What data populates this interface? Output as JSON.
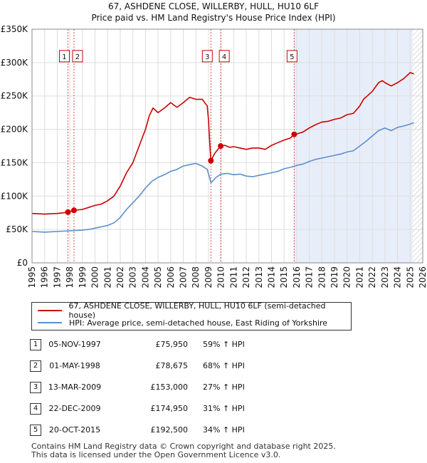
{
  "chart_data": {
    "type": "line",
    "title": "67, ASHDENE CLOSE, WILLERBY, HULL, HU10 6LF",
    "subtitle": "Price paid vs. HM Land Registry's House Price Index (HPI)",
    "xlim": [
      1995,
      2026
    ],
    "ylim": [
      0,
      350000
    ],
    "x_ticks": [
      "1995",
      "1996",
      "1997",
      "1998",
      "1999",
      "2000",
      "2001",
      "2002",
      "2003",
      "2004",
      "2005",
      "2006",
      "2007",
      "2008",
      "2009",
      "2010",
      "2011",
      "2012",
      "2013",
      "2014",
      "2015",
      "2016",
      "2017",
      "2018",
      "2019",
      "2020",
      "2021",
      "2022",
      "2023",
      "2024",
      "2025",
      "2026"
    ],
    "y_ticks": [
      {
        "value": 0,
        "label": "£0"
      },
      {
        "value": 50000,
        "label": "£50K"
      },
      {
        "value": 100000,
        "label": "£100K"
      },
      {
        "value": 150000,
        "label": "£150K"
      },
      {
        "value": 200000,
        "label": "£200K"
      },
      {
        "value": 250000,
        "label": "£250K"
      },
      {
        "value": 300000,
        "label": "£300K"
      },
      {
        "value": 350000,
        "label": "£350K"
      }
    ],
    "shaded_ranges": [
      [
        2015.8,
        2025.2
      ]
    ],
    "hatched_after": 2025.2,
    "series": [
      {
        "name": "67, ASHDENE CLOSE, WILLERBY, HULL, HU10 6LF (semi-detached house)",
        "color": "#cc0000",
        "x": [
          1995.0,
          1995.5,
          1996.0,
          1996.5,
          1997.0,
          1997.5,
          1997.85,
          1998.0,
          1998.33,
          1998.5,
          1999.0,
          1999.5,
          2000.0,
          2000.5,
          2001.0,
          2001.5,
          2002.0,
          2002.5,
          2003.0,
          2003.5,
          2004.0,
          2004.3,
          2004.6,
          2005.0,
          2005.5,
          2006.0,
          2006.5,
          2007.0,
          2007.5,
          2008.0,
          2008.5,
          2008.9,
          2009.0,
          2009.1,
          2009.19,
          2009.5,
          2009.97,
          2010.3,
          2010.7,
          2011.0,
          2011.5,
          2012.0,
          2012.5,
          2013.0,
          2013.5,
          2014.0,
          2014.5,
          2015.0,
          2015.5,
          2015.8,
          2016.0,
          2016.5,
          2017.0,
          2017.5,
          2018.0,
          2018.5,
          2019.0,
          2019.5,
          2020.0,
          2020.5,
          2021.0,
          2021.3,
          2021.6,
          2022.0,
          2022.5,
          2022.8,
          2023.0,
          2023.5,
          2024.0,
          2024.5,
          2025.0,
          2025.3
        ],
        "values": [
          74000,
          73500,
          73000,
          73500,
          74000,
          75000,
          75950,
          77000,
          78675,
          79000,
          80000,
          83000,
          86000,
          88000,
          93000,
          100000,
          115000,
          135000,
          150000,
          175000,
          200000,
          220000,
          232000,
          225000,
          232000,
          240000,
          233000,
          240000,
          248000,
          245000,
          245000,
          235000,
          215000,
          180000,
          153000,
          164000,
          174950,
          176000,
          173000,
          174000,
          172000,
          170000,
          172000,
          172000,
          170000,
          176000,
          180000,
          184000,
          187000,
          192500,
          193000,
          196000,
          202000,
          207000,
          211000,
          212000,
          215000,
          217000,
          222000,
          224000,
          235000,
          245000,
          250000,
          257000,
          270000,
          273000,
          270000,
          265000,
          270000,
          276000,
          285000,
          283000
        ]
      },
      {
        "name": "HPI: Average price, semi-detached house, East Riding of Yorkshire",
        "color": "#5b8fcc",
        "x": [
          1995.0,
          1995.5,
          1996.0,
          1996.5,
          1997.0,
          1997.5,
          1998.0,
          1998.5,
          1999.0,
          1999.5,
          2000.0,
          2000.5,
          2001.0,
          2001.5,
          2002.0,
          2002.5,
          2003.0,
          2003.5,
          2004.0,
          2004.5,
          2005.0,
          2005.5,
          2006.0,
          2006.5,
          2007.0,
          2007.5,
          2008.0,
          2008.5,
          2008.9,
          2009.2,
          2009.6,
          2010.0,
          2010.5,
          2011.0,
          2011.5,
          2012.0,
          2012.5,
          2013.0,
          2013.5,
          2014.0,
          2014.5,
          2015.0,
          2015.5,
          2016.0,
          2016.5,
          2017.0,
          2017.5,
          2018.0,
          2018.5,
          2019.0,
          2019.5,
          2020.0,
          2020.5,
          2021.0,
          2021.5,
          2022.0,
          2022.5,
          2023.0,
          2023.5,
          2024.0,
          2024.5,
          2025.0,
          2025.3
        ],
        "values": [
          47000,
          46500,
          46000,
          46500,
          47000,
          47500,
          48000,
          48500,
          49000,
          50000,
          52000,
          54000,
          56000,
          60000,
          68000,
          80000,
          90000,
          100000,
          112000,
          122000,
          128000,
          132000,
          137000,
          140000,
          145000,
          147000,
          149000,
          145000,
          140000,
          120000,
          128000,
          133000,
          134000,
          132000,
          133000,
          130000,
          129000,
          131000,
          133000,
          135000,
          137000,
          141000,
          143000,
          146000,
          148000,
          152000,
          155000,
          157000,
          159000,
          161000,
          163000,
          166000,
          168000,
          175000,
          182000,
          190000,
          198000,
          202000,
          198000,
          203000,
          205000,
          208000,
          210000
        ]
      }
    ],
    "transactions": [
      {
        "num": "1",
        "year": 1997.85,
        "date": "05-NOV-1997",
        "price_value": 75950,
        "price": "£75,950",
        "hpi": "59% ↑ HPI"
      },
      {
        "num": "2",
        "year": 1998.33,
        "date": "01-MAY-1998",
        "price_value": 78675,
        "price": "£78,675",
        "hpi": "68% ↑ HPI"
      },
      {
        "num": "3",
        "year": 2009.19,
        "date": "13-MAR-2009",
        "price_value": 153000,
        "price": "£153,000",
        "hpi": "27% ↑ HPI"
      },
      {
        "num": "4",
        "year": 2009.97,
        "date": "22-DEC-2009",
        "price_value": 174950,
        "price": "£174,950",
        "hpi": "31% ↑ HPI"
      },
      {
        "num": "5",
        "year": 2015.8,
        "date": "20-OCT-2015",
        "price_value": 192500,
        "price": "£192,500",
        "hpi": "34% ↑ HPI"
      }
    ],
    "marker_box_value": 300000
  },
  "legend": {
    "property_label": "67, ASHDENE CLOSE, WILLERBY, HULL, HU10 6LF (semi-detached house)",
    "hpi_label": "HPI: Average price, semi-detached house, East Riding of Yorkshire"
  },
  "footer": {
    "line1": "Contains HM Land Registry data © Crown copyright and database right 2025.",
    "line2": "This data is licensed under the Open Government Licence v3.0."
  },
  "colors": {
    "property": "#cc0000",
    "hpi": "#5b8fcc",
    "grid": "#dddddd",
    "shade": "#e8eef9"
  }
}
